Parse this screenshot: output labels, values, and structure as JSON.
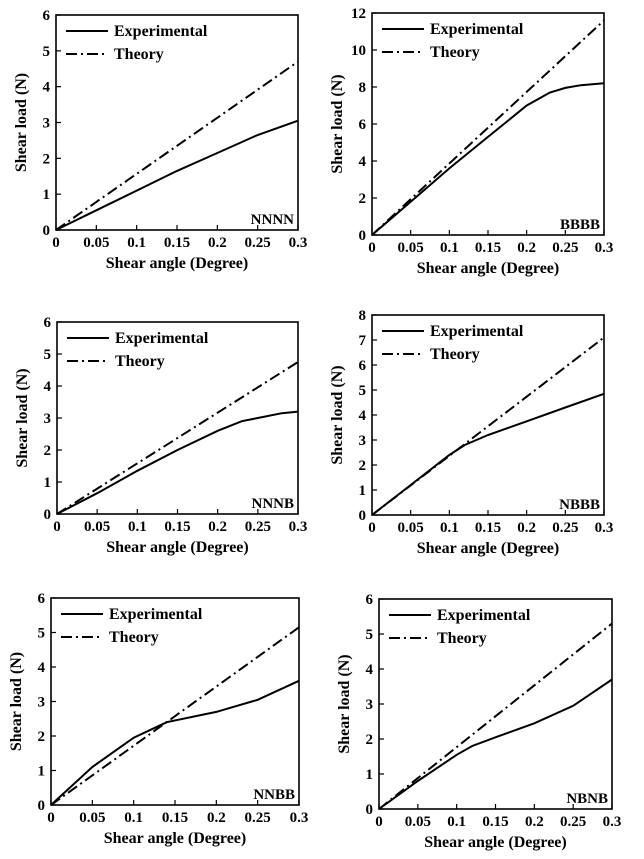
{
  "chart_data": [
    {
      "type": "line",
      "panel_label": "NNNN",
      "xlabel": "Shear angle (Degree)",
      "ylabel": "Shear load (N)",
      "xlim": [
        0,
        0.3
      ],
      "ylim": [
        0,
        6
      ],
      "x_ticks": [
        "0",
        "0.05",
        "0.1",
        "0.15",
        "0.2",
        "0.25",
        "0.3"
      ],
      "y_ticks": [
        "0",
        "1",
        "2",
        "3",
        "4",
        "5",
        "6"
      ],
      "legend": [
        "Experimental",
        "Theory"
      ],
      "legend_position": "top-left",
      "grid": false,
      "series": [
        {
          "name": "Experimental",
          "style": "solid",
          "x": [
            0,
            0.05,
            0.1,
            0.15,
            0.2,
            0.25,
            0.3
          ],
          "y": [
            0,
            0.55,
            1.1,
            1.65,
            2.15,
            2.65,
            3.05
          ]
        },
        {
          "name": "Theory",
          "style": "dash-dot",
          "x": [
            0,
            0.3
          ],
          "y": [
            0,
            4.7
          ]
        }
      ]
    },
    {
      "type": "line",
      "panel_label": "BBBB",
      "xlabel": "Shear angle (Degree)",
      "ylabel": "Shear load (N)",
      "xlim": [
        0,
        0.3
      ],
      "ylim": [
        0,
        12
      ],
      "x_ticks": [
        "0",
        "0.05",
        "0.1",
        "0.15",
        "0.2",
        "0.25",
        "0.3"
      ],
      "y_ticks": [
        "0",
        "2",
        "4",
        "6",
        "8",
        "10",
        "12"
      ],
      "legend": [
        "Experimental",
        "Theory"
      ],
      "legend_position": "top-left",
      "grid": false,
      "series": [
        {
          "name": "Experimental",
          "style": "solid",
          "x": [
            0,
            0.05,
            0.1,
            0.15,
            0.2,
            0.23,
            0.25,
            0.27,
            0.3
          ],
          "y": [
            0,
            1.8,
            3.6,
            5.3,
            7.0,
            7.7,
            7.95,
            8.1,
            8.2
          ]
        },
        {
          "name": "Theory",
          "style": "dash-dot",
          "x": [
            0,
            0.3
          ],
          "y": [
            0,
            11.6
          ]
        }
      ]
    },
    {
      "type": "line",
      "panel_label": "NNNB",
      "xlabel": "Shear angle (Degree)",
      "ylabel": "Shear load (N)",
      "xlim": [
        0,
        0.3
      ],
      "ylim": [
        0,
        6
      ],
      "x_ticks": [
        "0",
        "0.05",
        "0.1",
        "0.15",
        "0.2",
        "0.25",
        "0.3"
      ],
      "y_ticks": [
        "0",
        "1",
        "2",
        "3",
        "4",
        "5",
        "6"
      ],
      "legend": [
        "Experimental",
        "Theory"
      ],
      "legend_position": "top-left",
      "grid": false,
      "series": [
        {
          "name": "Experimental",
          "style": "solid",
          "x": [
            0,
            0.05,
            0.1,
            0.15,
            0.2,
            0.23,
            0.25,
            0.28,
            0.3
          ],
          "y": [
            0,
            0.65,
            1.35,
            2.0,
            2.6,
            2.9,
            3.0,
            3.15,
            3.2
          ]
        },
        {
          "name": "Theory",
          "style": "dash-dot",
          "x": [
            0,
            0.3
          ],
          "y": [
            0,
            4.75
          ]
        }
      ]
    },
    {
      "type": "line",
      "panel_label": "NBBB",
      "xlabel": "Shear angle (Degree)",
      "ylabel": "Shear load (N)",
      "xlim": [
        0,
        0.3
      ],
      "ylim": [
        0,
        8
      ],
      "x_ticks": [
        "0",
        "0.05",
        "0.1",
        "0.15",
        "0.2",
        "0.25",
        "0.3"
      ],
      "y_ticks": [
        "0",
        "1",
        "2",
        "3",
        "4",
        "5",
        "6",
        "7",
        "8"
      ],
      "legend": [
        "Experimental",
        "Theory"
      ],
      "legend_position": "top-left",
      "grid": false,
      "series": [
        {
          "name": "Experimental",
          "style": "solid",
          "x": [
            0,
            0.05,
            0.1,
            0.12,
            0.15,
            0.2,
            0.25,
            0.3
          ],
          "y": [
            0,
            1.2,
            2.4,
            2.8,
            3.2,
            3.75,
            4.3,
            4.85
          ]
        },
        {
          "name": "Theory",
          "style": "dash-dot",
          "x": [
            0,
            0.3
          ],
          "y": [
            0,
            7.1
          ]
        }
      ]
    },
    {
      "type": "line",
      "panel_label": "NNBB",
      "xlabel": "Shear angle (Degree)",
      "ylabel": "Shear load (N)",
      "xlim": [
        0,
        0.3
      ],
      "ylim": [
        0,
        6
      ],
      "x_ticks": [
        "0",
        "0.05",
        "0.1",
        "0.15",
        "0.2",
        "0.25",
        "0.3"
      ],
      "y_ticks": [
        "0",
        "1",
        "2",
        "3",
        "4",
        "5",
        "6"
      ],
      "legend": [
        "Experimental",
        "Theory"
      ],
      "legend_position": "top-left",
      "grid": false,
      "series": [
        {
          "name": "Experimental",
          "style": "solid",
          "x": [
            0,
            0.05,
            0.1,
            0.14,
            0.2,
            0.25,
            0.3
          ],
          "y": [
            0,
            1.1,
            1.95,
            2.4,
            2.7,
            3.05,
            3.6
          ]
        },
        {
          "name": "Theory",
          "style": "dash-dot",
          "x": [
            0,
            0.3
          ],
          "y": [
            0,
            5.15
          ]
        }
      ]
    },
    {
      "type": "line",
      "panel_label": "NBNB",
      "xlabel": "Shear angle (Degree)",
      "ylabel": "Shear load (N)",
      "xlim": [
        0,
        0.3
      ],
      "ylim": [
        0,
        6
      ],
      "x_ticks": [
        "0",
        "0.05",
        "0.1",
        "0.15",
        "0.2",
        "0.25",
        "0.3"
      ],
      "y_ticks": [
        "0",
        "1",
        "2",
        "3",
        "4",
        "5",
        "6"
      ],
      "legend": [
        "Experimental",
        "Theory"
      ],
      "legend_position": "top-left",
      "grid": false,
      "series": [
        {
          "name": "Experimental",
          "style": "solid",
          "x": [
            0,
            0.05,
            0.1,
            0.12,
            0.15,
            0.2,
            0.25,
            0.3
          ],
          "y": [
            0,
            0.8,
            1.55,
            1.8,
            2.05,
            2.45,
            2.95,
            3.7
          ]
        },
        {
          "name": "Theory",
          "style": "dash-dot",
          "x": [
            0,
            0.3
          ],
          "y": [
            0,
            5.3
          ]
        }
      ]
    }
  ]
}
